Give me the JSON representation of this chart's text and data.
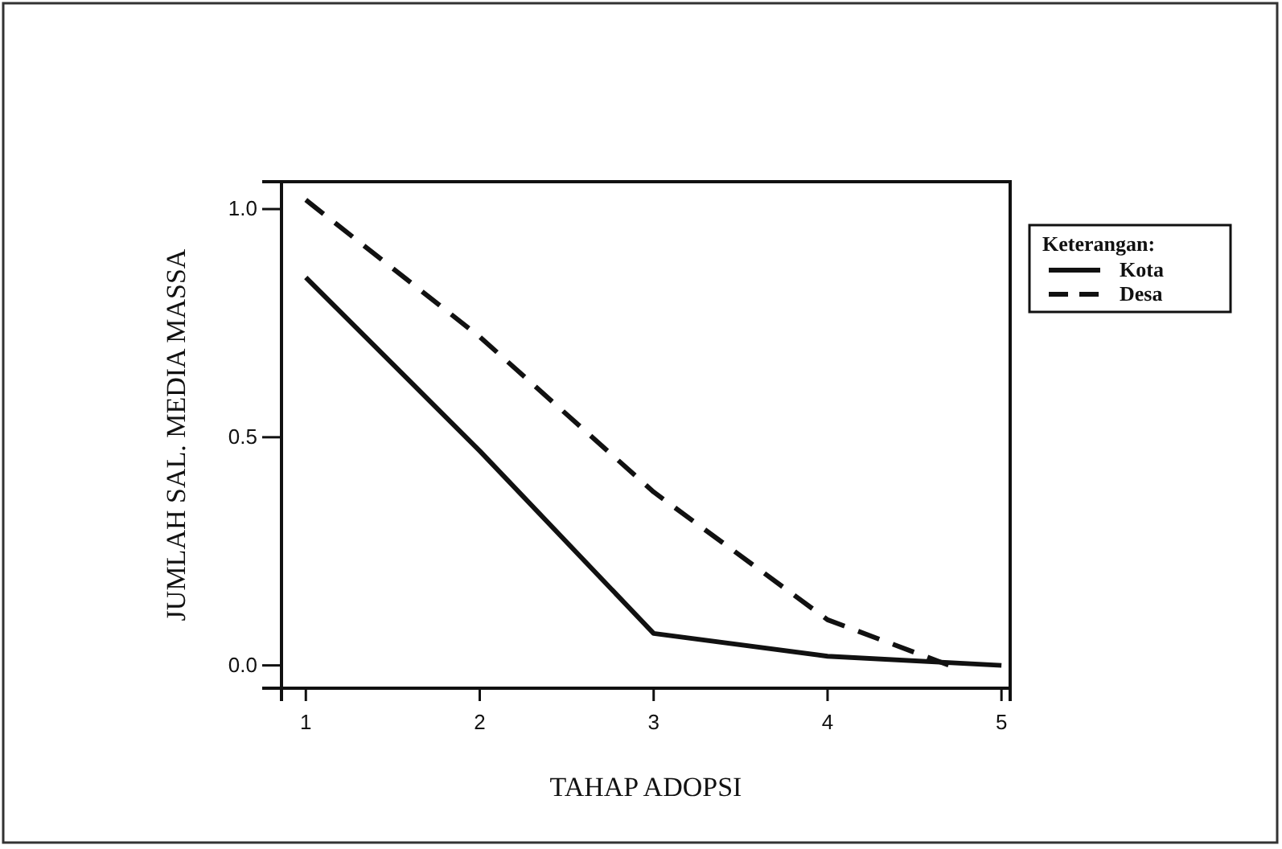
{
  "chart_data": {
    "type": "line",
    "xlabel": "TAHAP ADOPSI",
    "ylabel": "JUMLAH SAL. MEDIA MASSA",
    "legend_title": "Keterangan:",
    "legend": "right",
    "xlim": [
      0.86,
      5.05
    ],
    "ylim": [
      -0.05,
      1.06
    ],
    "xticks": [
      1,
      2,
      3,
      4,
      5
    ],
    "yticks": [
      {
        "value": 0,
        "label": "0.0"
      },
      {
        "value": 0.5,
        "label": "0.5"
      },
      {
        "value": 1,
        "label": "1.0"
      }
    ],
    "series": [
      {
        "name": "Kota",
        "color": "#111111",
        "line_style": "solid",
        "x": [
          1,
          2,
          3,
          4,
          5
        ],
        "values": [
          0.85,
          0.47,
          0.07,
          0.02,
          0.0
        ]
      },
      {
        "name": "Desa",
        "color": "#111111",
        "line_style": "dashed",
        "x": [
          1,
          2,
          3,
          4,
          4.7
        ],
        "values": [
          1.02,
          0.72,
          0.38,
          0.1,
          0.0
        ]
      }
    ]
  }
}
